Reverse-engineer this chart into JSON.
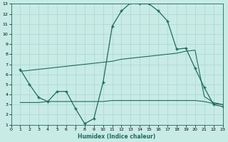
{
  "bg_color": "#c8ebe5",
  "line_color": "#1e6b5e",
  "grid_color": "#a8d8d0",
  "xlabel": "Humidex (Indice chaleur)",
  "xlim": [
    0,
    23
  ],
  "ylim": [
    1,
    13
  ],
  "xticks": [
    0,
    1,
    2,
    3,
    4,
    5,
    6,
    7,
    8,
    9,
    10,
    11,
    12,
    13,
    14,
    15,
    16,
    17,
    18,
    19,
    20,
    21,
    22,
    23
  ],
  "yticks": [
    1,
    2,
    3,
    4,
    5,
    6,
    7,
    8,
    9,
    10,
    11,
    12,
    13
  ],
  "curve1_x": [
    1,
    2,
    3,
    4,
    5,
    6,
    7,
    8,
    9,
    10,
    11,
    12,
    13,
    14,
    15,
    16,
    17,
    18,
    19,
    20,
    21,
    22,
    23
  ],
  "curve1_y": [
    6.5,
    5.0,
    3.7,
    3.3,
    4.3,
    4.3,
    2.6,
    1.1,
    1.6,
    5.2,
    10.8,
    12.3,
    13.1,
    13.0,
    13.0,
    12.3,
    11.3,
    8.5,
    8.6,
    6.6,
    4.7,
    3.0,
    2.8
  ],
  "curve2_x": [
    1,
    2,
    3,
    4,
    5,
    6,
    7,
    8,
    9,
    10,
    11,
    12,
    13,
    14,
    15,
    16,
    17,
    18,
    19,
    20,
    21,
    22,
    23
  ],
  "curve2_y": [
    6.3,
    6.4,
    6.5,
    6.6,
    6.7,
    6.8,
    6.9,
    7.0,
    7.1,
    7.2,
    7.3,
    7.5,
    7.6,
    7.7,
    7.8,
    7.9,
    8.0,
    8.1,
    8.3,
    8.4,
    3.8,
    3.2,
    3.0
  ],
  "curve3_x": [
    1,
    2,
    3,
    4,
    5,
    6,
    7,
    8,
    9,
    10,
    11,
    12,
    13,
    14,
    15,
    16,
    17,
    18,
    19,
    20,
    21,
    22,
    23
  ],
  "curve3_y": [
    3.2,
    3.2,
    3.2,
    3.3,
    3.3,
    3.3,
    3.3,
    3.3,
    3.3,
    3.3,
    3.4,
    3.4,
    3.4,
    3.4,
    3.4,
    3.4,
    3.4,
    3.4,
    3.4,
    3.4,
    3.3,
    3.1,
    3.0
  ]
}
